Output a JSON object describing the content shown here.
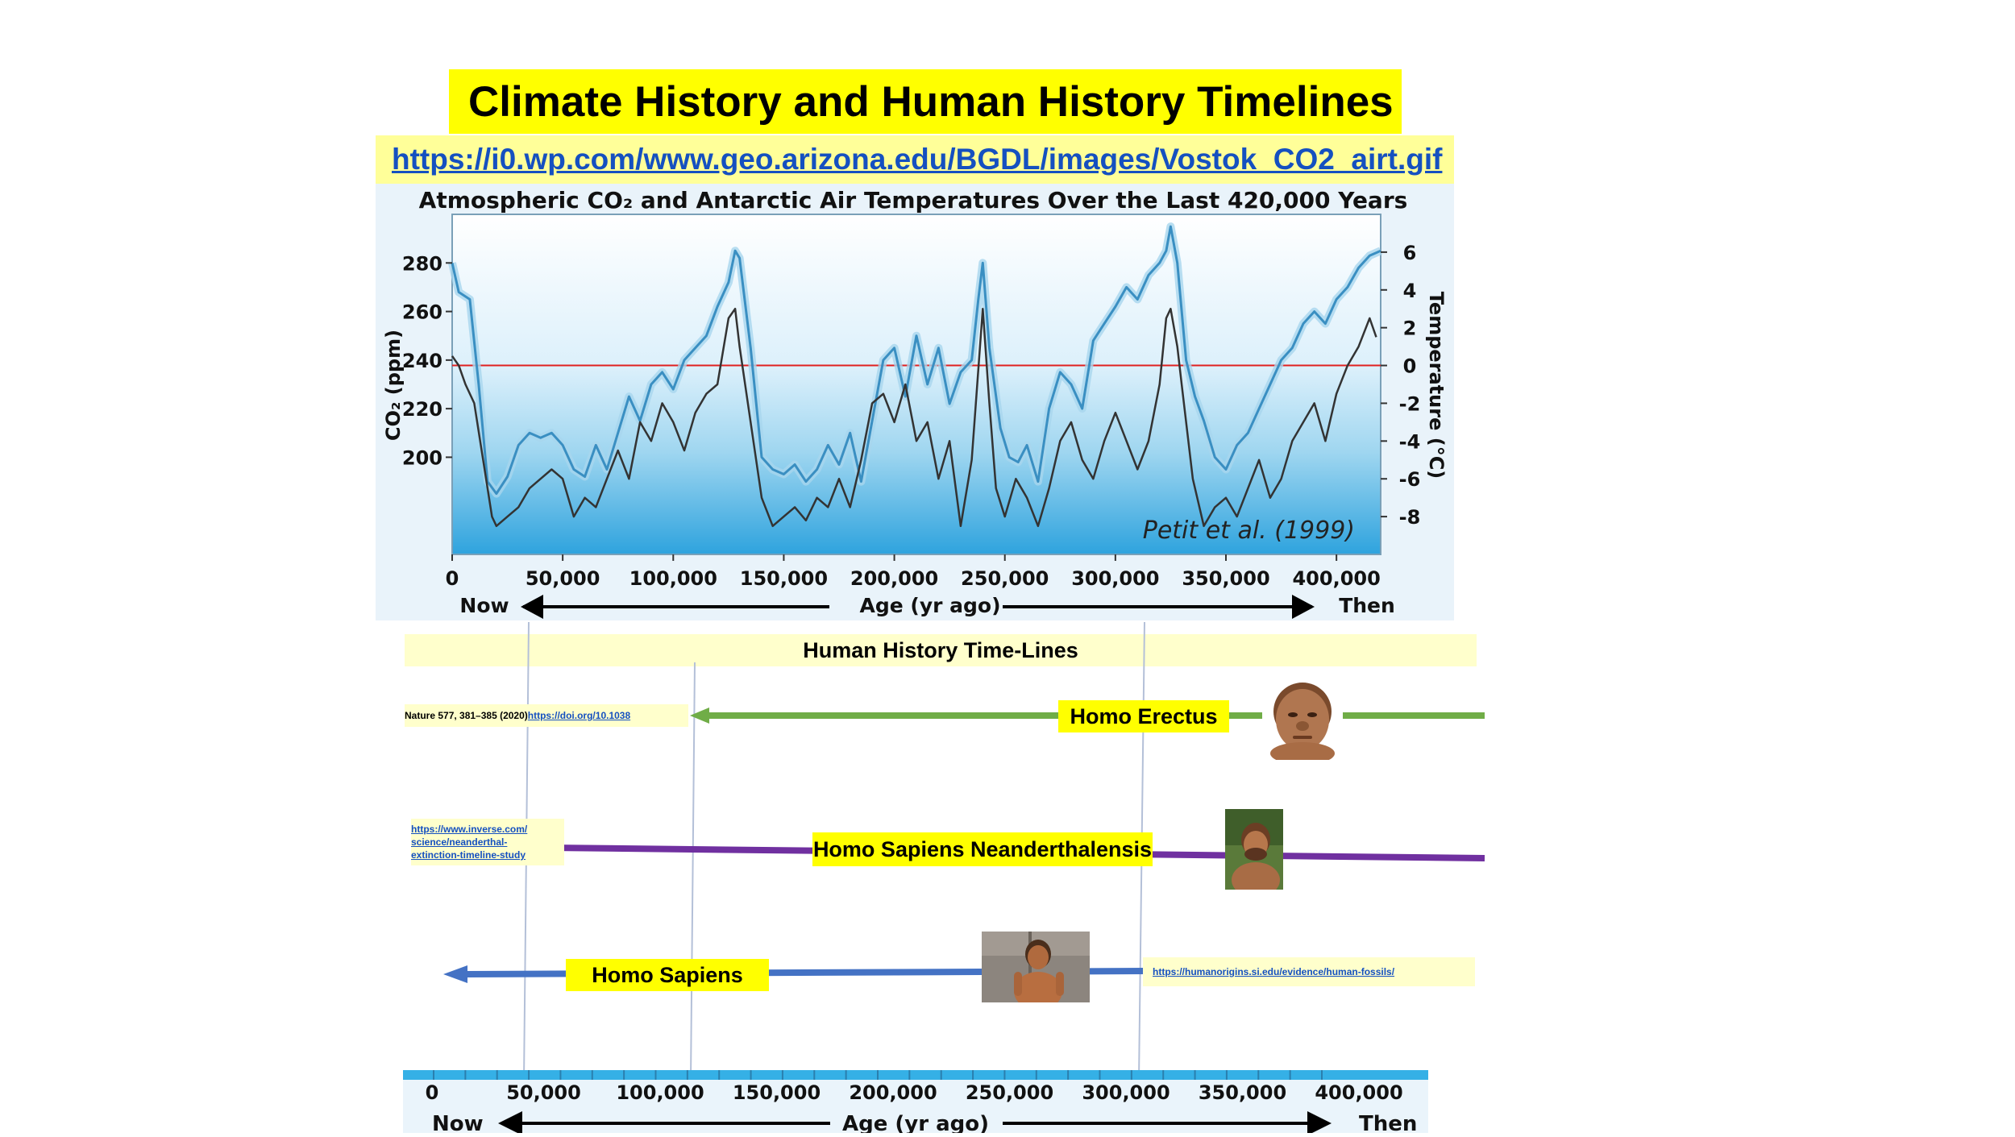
{
  "title": "Climate History and Human History Timelines",
  "source_url": "https://i0.wp.com/www.geo.arizona.edu/BGDL/images/Vostok_CO2_airt.gif",
  "chart_data": {
    "type": "line",
    "title": "Atmospheric CO₂ and Antarctic Air Temperatures Over the Last 420,000 Years",
    "attribution": "Petit et al. (1999)",
    "xlabel": "Age (yr ago)",
    "x_left_label": "Now",
    "x_right_label": "Then",
    "xlim": [
      0,
      420000
    ],
    "x_ticks": [
      0,
      50000,
      100000,
      150000,
      200000,
      250000,
      300000,
      350000,
      400000
    ],
    "x_tick_labels": [
      "0",
      "50,000",
      "100,000",
      "150,000",
      "200,000",
      "250,000",
      "300,000",
      "350,000",
      "400,000"
    ],
    "y_left": {
      "label": "CO₂ (ppm)",
      "lim": [
        160,
        300
      ],
      "ticks": [
        200,
        220,
        240,
        260,
        280
      ],
      "tick_labels": [
        "200",
        "220",
        "240",
        "260",
        "280"
      ]
    },
    "y_right": {
      "label": "Temperature (°C)",
      "lim": [
        -10,
        8
      ],
      "ticks": [
        6,
        4,
        2,
        0,
        -2,
        -4,
        -6,
        -8
      ],
      "tick_labels": [
        "6",
        "4",
        "2",
        "0",
        "-2",
        "-4",
        "-6",
        "-8"
      ]
    },
    "reference_line": {
      "axis": "temperature",
      "value": 0,
      "color": "#e02020"
    },
    "series": [
      {
        "axis": "co2",
        "color": "#3a8fc2",
        "x": [
          0,
          3000,
          8000,
          12000,
          16000,
          20000,
          25000,
          30000,
          35000,
          40000,
          45000,
          50000,
          55000,
          60000,
          65000,
          70000,
          75000,
          80000,
          85000,
          90000,
          95000,
          100000,
          105000,
          110000,
          115000,
          120000,
          125000,
          128000,
          130000,
          135000,
          140000,
          145000,
          150000,
          155000,
          160000,
          165000,
          170000,
          175000,
          180000,
          185000,
          190000,
          195000,
          200000,
          205000,
          210000,
          215000,
          220000,
          225000,
          230000,
          235000,
          238000,
          240000,
          243000,
          248000,
          252000,
          256000,
          260000,
          265000,
          270000,
          275000,
          280000,
          285000,
          290000,
          295000,
          300000,
          305000,
          310000,
          315000,
          320000,
          323000,
          325000,
          328000,
          332000,
          336000,
          340000,
          345000,
          350000,
          355000,
          360000,
          365000,
          370000,
          375000,
          380000,
          385000,
          390000,
          395000,
          400000,
          405000,
          410000,
          415000,
          420000
        ],
        "y": [
          280,
          268,
          265,
          230,
          190,
          185,
          192,
          205,
          210,
          208,
          210,
          205,
          195,
          192,
          205,
          195,
          210,
          225,
          215,
          230,
          235,
          228,
          240,
          245,
          250,
          262,
          272,
          285,
          282,
          245,
          200,
          195,
          193,
          197,
          190,
          195,
          205,
          197,
          210,
          190,
          215,
          240,
          245,
          225,
          250,
          230,
          245,
          222,
          235,
          240,
          265,
          280,
          245,
          212,
          200,
          198,
          205,
          190,
          220,
          235,
          230,
          220,
          248,
          255,
          262,
          270,
          265,
          275,
          280,
          285,
          295,
          280,
          240,
          225,
          215,
          200,
          195,
          205,
          210,
          220,
          230,
          240,
          245,
          255,
          260,
          255,
          265,
          270,
          278,
          283,
          285
        ]
      },
      {
        "axis": "temperature",
        "color": "#333333",
        "x": [
          0,
          3000,
          6000,
          10000,
          14000,
          18000,
          20000,
          25000,
          30000,
          35000,
          40000,
          45000,
          50000,
          55000,
          60000,
          65000,
          70000,
          75000,
          80000,
          85000,
          90000,
          95000,
          100000,
          105000,
          110000,
          115000,
          120000,
          125000,
          128000,
          130000,
          135000,
          140000,
          145000,
          150000,
          155000,
          160000,
          165000,
          170000,
          175000,
          180000,
          185000,
          190000,
          195000,
          200000,
          205000,
          210000,
          215000,
          220000,
          225000,
          230000,
          235000,
          240000,
          243000,
          246000,
          250000,
          255000,
          260000,
          265000,
          270000,
          275000,
          280000,
          285000,
          290000,
          295000,
          300000,
          305000,
          310000,
          315000,
          320000,
          323000,
          325000,
          328000,
          330000,
          335000,
          340000,
          345000,
          350000,
          355000,
          360000,
          365000,
          370000,
          375000,
          380000,
          385000,
          390000,
          395000,
          400000,
          405000,
          410000,
          415000,
          418000
        ],
        "y": [
          0.5,
          0,
          -1,
          -2,
          -5,
          -8,
          -8.5,
          -8,
          -7.5,
          -6.5,
          -6,
          -5.5,
          -6,
          -8,
          -7,
          -7.5,
          -6,
          -4.5,
          -6,
          -3,
          -4,
          -2,
          -3,
          -4.5,
          -2.5,
          -1.5,
          -1,
          2.5,
          3,
          1,
          -3,
          -7,
          -8.5,
          -8,
          -7.5,
          -8.2,
          -7,
          -7.5,
          -6,
          -7.5,
          -5,
          -2,
          -1.5,
          -3,
          -1,
          -4,
          -3,
          -6,
          -4,
          -8.5,
          -5,
          3,
          -2,
          -6.5,
          -8,
          -6,
          -7,
          -8.5,
          -6.5,
          -4,
          -3,
          -5,
          -6,
          -4,
          -2.5,
          -4,
          -5.5,
          -4,
          -1,
          2.5,
          3,
          1,
          -1,
          -6,
          -8.5,
          -7.5,
          -7,
          -8,
          -6.5,
          -5,
          -7,
          -6,
          -4,
          -3,
          -2,
          -4,
          -1.5,
          0,
          1,
          2.5,
          1.5
        ]
      }
    ]
  },
  "human_history": {
    "heading": "Human History Time-Lines",
    "homo_erectus": {
      "label": "Homo Erectus",
      "ref_text": "Nature 577, 381–385 (2020)",
      "ref_link": "https://doi.org/10.1038",
      "line_color": "#70ad47"
    },
    "neanderthal": {
      "label": "Homo Sapiens Neanderthalensis",
      "ref_link_lines": [
        "https://www.inverse.com/",
        "science/neanderthal-",
        "extinction-timeline-study"
      ],
      "line_color": "#7030a0"
    },
    "homo_sapiens": {
      "label": "Homo Sapiens",
      "ref_link": "https://humanorigins.si.edu/evidence/human-fossils/",
      "line_color": "#4472c4"
    }
  },
  "bottom_axis": {
    "xlabel": "Age (yr ago)",
    "left_label": "Now",
    "right_label": "Then",
    "tick_labels": [
      "0",
      "50,000",
      "100,000",
      "150,000",
      "200,000",
      "250,000",
      "300,000",
      "350,000",
      "400,000"
    ]
  }
}
